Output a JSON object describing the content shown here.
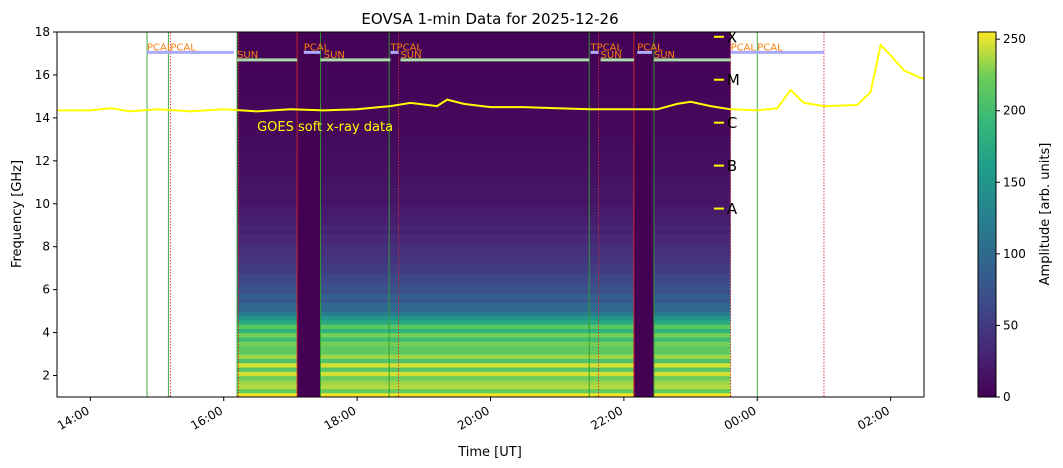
{
  "chart_data": {
    "type": "heatmap",
    "title": "EOVSA 1-min Data for 2025-12-26",
    "xlabel": "Time [UT]",
    "ylabel": "Frequency [GHz]",
    "colorbar_label": "Amplitude [arb. units]",
    "colormap": "viridis",
    "x_ticks": [
      {
        "label": "14:00",
        "hour": 14
      },
      {
        "label": "16:00",
        "hour": 16
      },
      {
        "label": "18:00",
        "hour": 18
      },
      {
        "label": "20:00",
        "hour": 20
      },
      {
        "label": "22:00",
        "hour": 22
      },
      {
        "label": "00:00",
        "hour": 24
      },
      {
        "label": "02:00",
        "hour": 26
      }
    ],
    "xlim_hours": [
      13.5,
      26.5
    ],
    "ylim": [
      1,
      18
    ],
    "y_ticks": [
      2,
      4,
      6,
      8,
      10,
      12,
      14,
      16,
      18
    ],
    "colorbar_range": [
      0,
      255
    ],
    "colorbar_ticks": [
      0,
      50,
      100,
      150,
      200,
      250
    ],
    "data_window_hours": [
      16.2,
      23.6
    ],
    "spectrogram_profile": [
      {
        "f": 1,
        "v": 255
      },
      {
        "f": 2.2,
        "v": 250
      },
      {
        "f": 3.5,
        "v": 235
      },
      {
        "f": 4.4,
        "v": 215
      },
      {
        "f": 5.0,
        "v": 110
      },
      {
        "f": 6.0,
        "v": 80
      },
      {
        "f": 7.0,
        "v": 55
      },
      {
        "f": 8.5,
        "v": 35
      },
      {
        "f": 10,
        "v": 20
      },
      {
        "f": 12,
        "v": 12
      },
      {
        "f": 14,
        "v": 6
      },
      {
        "f": 18,
        "v": 2
      }
    ],
    "blank_intervals_hours": [
      [
        17.1,
        17.45
      ],
      [
        22.15,
        22.45
      ]
    ],
    "scan_labels": [
      {
        "text": "PCAL",
        "hour": 14.85,
        "level": "upper"
      },
      {
        "text": "PCAL",
        "hour": 15.2,
        "level": "upper"
      },
      {
        "text": "SUN",
        "hour": 16.2,
        "level": "lower"
      },
      {
        "text": "PCAL",
        "hour": 17.2,
        "level": "upper"
      },
      {
        "text": "SUN",
        "hour": 17.5,
        "level": "lower"
      },
      {
        "text": "TPCAL",
        "hour": 18.5,
        "level": "upper"
      },
      {
        "text": "SUN",
        "hour": 18.65,
        "level": "lower"
      },
      {
        "text": "TPCAL",
        "hour": 21.5,
        "level": "upper"
      },
      {
        "text": "SUN",
        "hour": 21.65,
        "level": "lower"
      },
      {
        "text": "PCAL",
        "hour": 22.2,
        "level": "upper"
      },
      {
        "text": "SUN",
        "hour": 22.45,
        "level": "lower"
      },
      {
        "text": "PCAL",
        "hour": 23.6,
        "level": "upper"
      },
      {
        "text": "PCAL",
        "hour": 24.0,
        "level": "upper"
      }
    ],
    "scan_bars": [
      {
        "start": 14.85,
        "end": 16.15,
        "level": "upper",
        "color": "#aaaaff"
      },
      {
        "start": 16.2,
        "end": 17.1,
        "level": "lower",
        "color": "#aaddaa"
      },
      {
        "start": 17.2,
        "end": 17.45,
        "level": "upper",
        "color": "#aaaaff"
      },
      {
        "start": 17.45,
        "end": 18.5,
        "level": "lower",
        "color": "#aaddaa"
      },
      {
        "start": 18.5,
        "end": 18.62,
        "level": "upper",
        "color": "#aaaaff"
      },
      {
        "start": 18.65,
        "end": 21.48,
        "level": "lower",
        "color": "#aaddaa"
      },
      {
        "start": 21.5,
        "end": 21.62,
        "level": "upper",
        "color": "#aaaaff"
      },
      {
        "start": 21.65,
        "end": 22.15,
        "level": "lower",
        "color": "#aaddaa"
      },
      {
        "start": 22.2,
        "end": 22.42,
        "level": "upper",
        "color": "#aaaaff"
      },
      {
        "start": 22.45,
        "end": 23.6,
        "level": "lower",
        "color": "#aaddaa"
      },
      {
        "start": 23.6,
        "end": 25.0,
        "level": "upper",
        "color": "#aaaaff"
      }
    ],
    "scan_levels_ghz": {
      "upper": 17.05,
      "lower": 16.7
    },
    "markers": [
      {
        "hour": 14.85,
        "color": "#2ca02c",
        "style": "solid"
      },
      {
        "hour": 15.17,
        "color": "#2ca02c",
        "style": "solid"
      },
      {
        "hour": 15.2,
        "color": "#d62728",
        "style": "dotted"
      },
      {
        "hour": 16.2,
        "color": "#2ca02c",
        "style": "solid"
      },
      {
        "hour": 16.22,
        "color": "#d62728",
        "style": "dotted"
      },
      {
        "hour": 17.1,
        "color": "#d62728",
        "style": "solid"
      },
      {
        "hour": 17.45,
        "color": "#2ca02c",
        "style": "solid"
      },
      {
        "hour": 18.48,
        "color": "#2ca02c",
        "style": "solid"
      },
      {
        "hour": 18.62,
        "color": "#d62728",
        "style": "dotted"
      },
      {
        "hour": 21.48,
        "color": "#2ca02c",
        "style": "solid"
      },
      {
        "hour": 21.62,
        "color": "#d62728",
        "style": "dotted"
      },
      {
        "hour": 22.15,
        "color": "#d62728",
        "style": "solid"
      },
      {
        "hour": 22.45,
        "color": "#2ca02c",
        "style": "solid"
      },
      {
        "hour": 23.6,
        "color": "#d62728",
        "style": "dotted"
      },
      {
        "hour": 24.0,
        "color": "#2ca02c",
        "style": "solid"
      },
      {
        "hour": 25.0,
        "color": "#d62728",
        "style": "dotted"
      }
    ],
    "goes": {
      "label": "GOES soft x-ray data",
      "label_hour": 16.5,
      "label_ghz": 13.4,
      "color": "#ffff00",
      "classes": [
        {
          "label": "X",
          "ghz": 17.8
        },
        {
          "label": "M",
          "ghz": 15.8
        },
        {
          "label": "C",
          "ghz": 13.8
        },
        {
          "label": "B",
          "ghz": 11.8
        },
        {
          "label": "A",
          "ghz": 9.8
        }
      ],
      "class_marker_hour": 23.5,
      "curve": [
        {
          "h": 13.5,
          "v": 14.35
        },
        {
          "h": 14.0,
          "v": 14.35
        },
        {
          "h": 14.3,
          "v": 14.45
        },
        {
          "h": 14.6,
          "v": 14.3
        },
        {
          "h": 15.0,
          "v": 14.4
        },
        {
          "h": 15.5,
          "v": 14.3
        },
        {
          "h": 16.0,
          "v": 14.4
        },
        {
          "h": 16.5,
          "v": 14.3
        },
        {
          "h": 17.0,
          "v": 14.4
        },
        {
          "h": 17.5,
          "v": 14.35
        },
        {
          "h": 18.0,
          "v": 14.4
        },
        {
          "h": 18.5,
          "v": 14.55
        },
        {
          "h": 18.8,
          "v": 14.7
        },
        {
          "h": 19.2,
          "v": 14.55
        },
        {
          "h": 19.35,
          "v": 14.85
        },
        {
          "h": 19.6,
          "v": 14.65
        },
        {
          "h": 20.0,
          "v": 14.5
        },
        {
          "h": 20.5,
          "v": 14.5
        },
        {
          "h": 21.0,
          "v": 14.45
        },
        {
          "h": 21.5,
          "v": 14.4
        },
        {
          "h": 22.0,
          "v": 14.4
        },
        {
          "h": 22.5,
          "v": 14.4
        },
        {
          "h": 22.8,
          "v": 14.65
        },
        {
          "h": 23.0,
          "v": 14.75
        },
        {
          "h": 23.3,
          "v": 14.55
        },
        {
          "h": 23.6,
          "v": 14.4
        },
        {
          "h": 24.0,
          "v": 14.35
        },
        {
          "h": 24.3,
          "v": 14.45
        },
        {
          "h": 24.5,
          "v": 15.3
        },
        {
          "h": 24.7,
          "v": 14.7
        },
        {
          "h": 25.0,
          "v": 14.55
        },
        {
          "h": 25.5,
          "v": 14.6
        },
        {
          "h": 25.7,
          "v": 15.2
        },
        {
          "h": 25.85,
          "v": 17.4
        },
        {
          "h": 26.0,
          "v": 16.9
        },
        {
          "h": 26.2,
          "v": 16.2
        },
        {
          "h": 26.5,
          "v": 15.8
        }
      ]
    }
  }
}
